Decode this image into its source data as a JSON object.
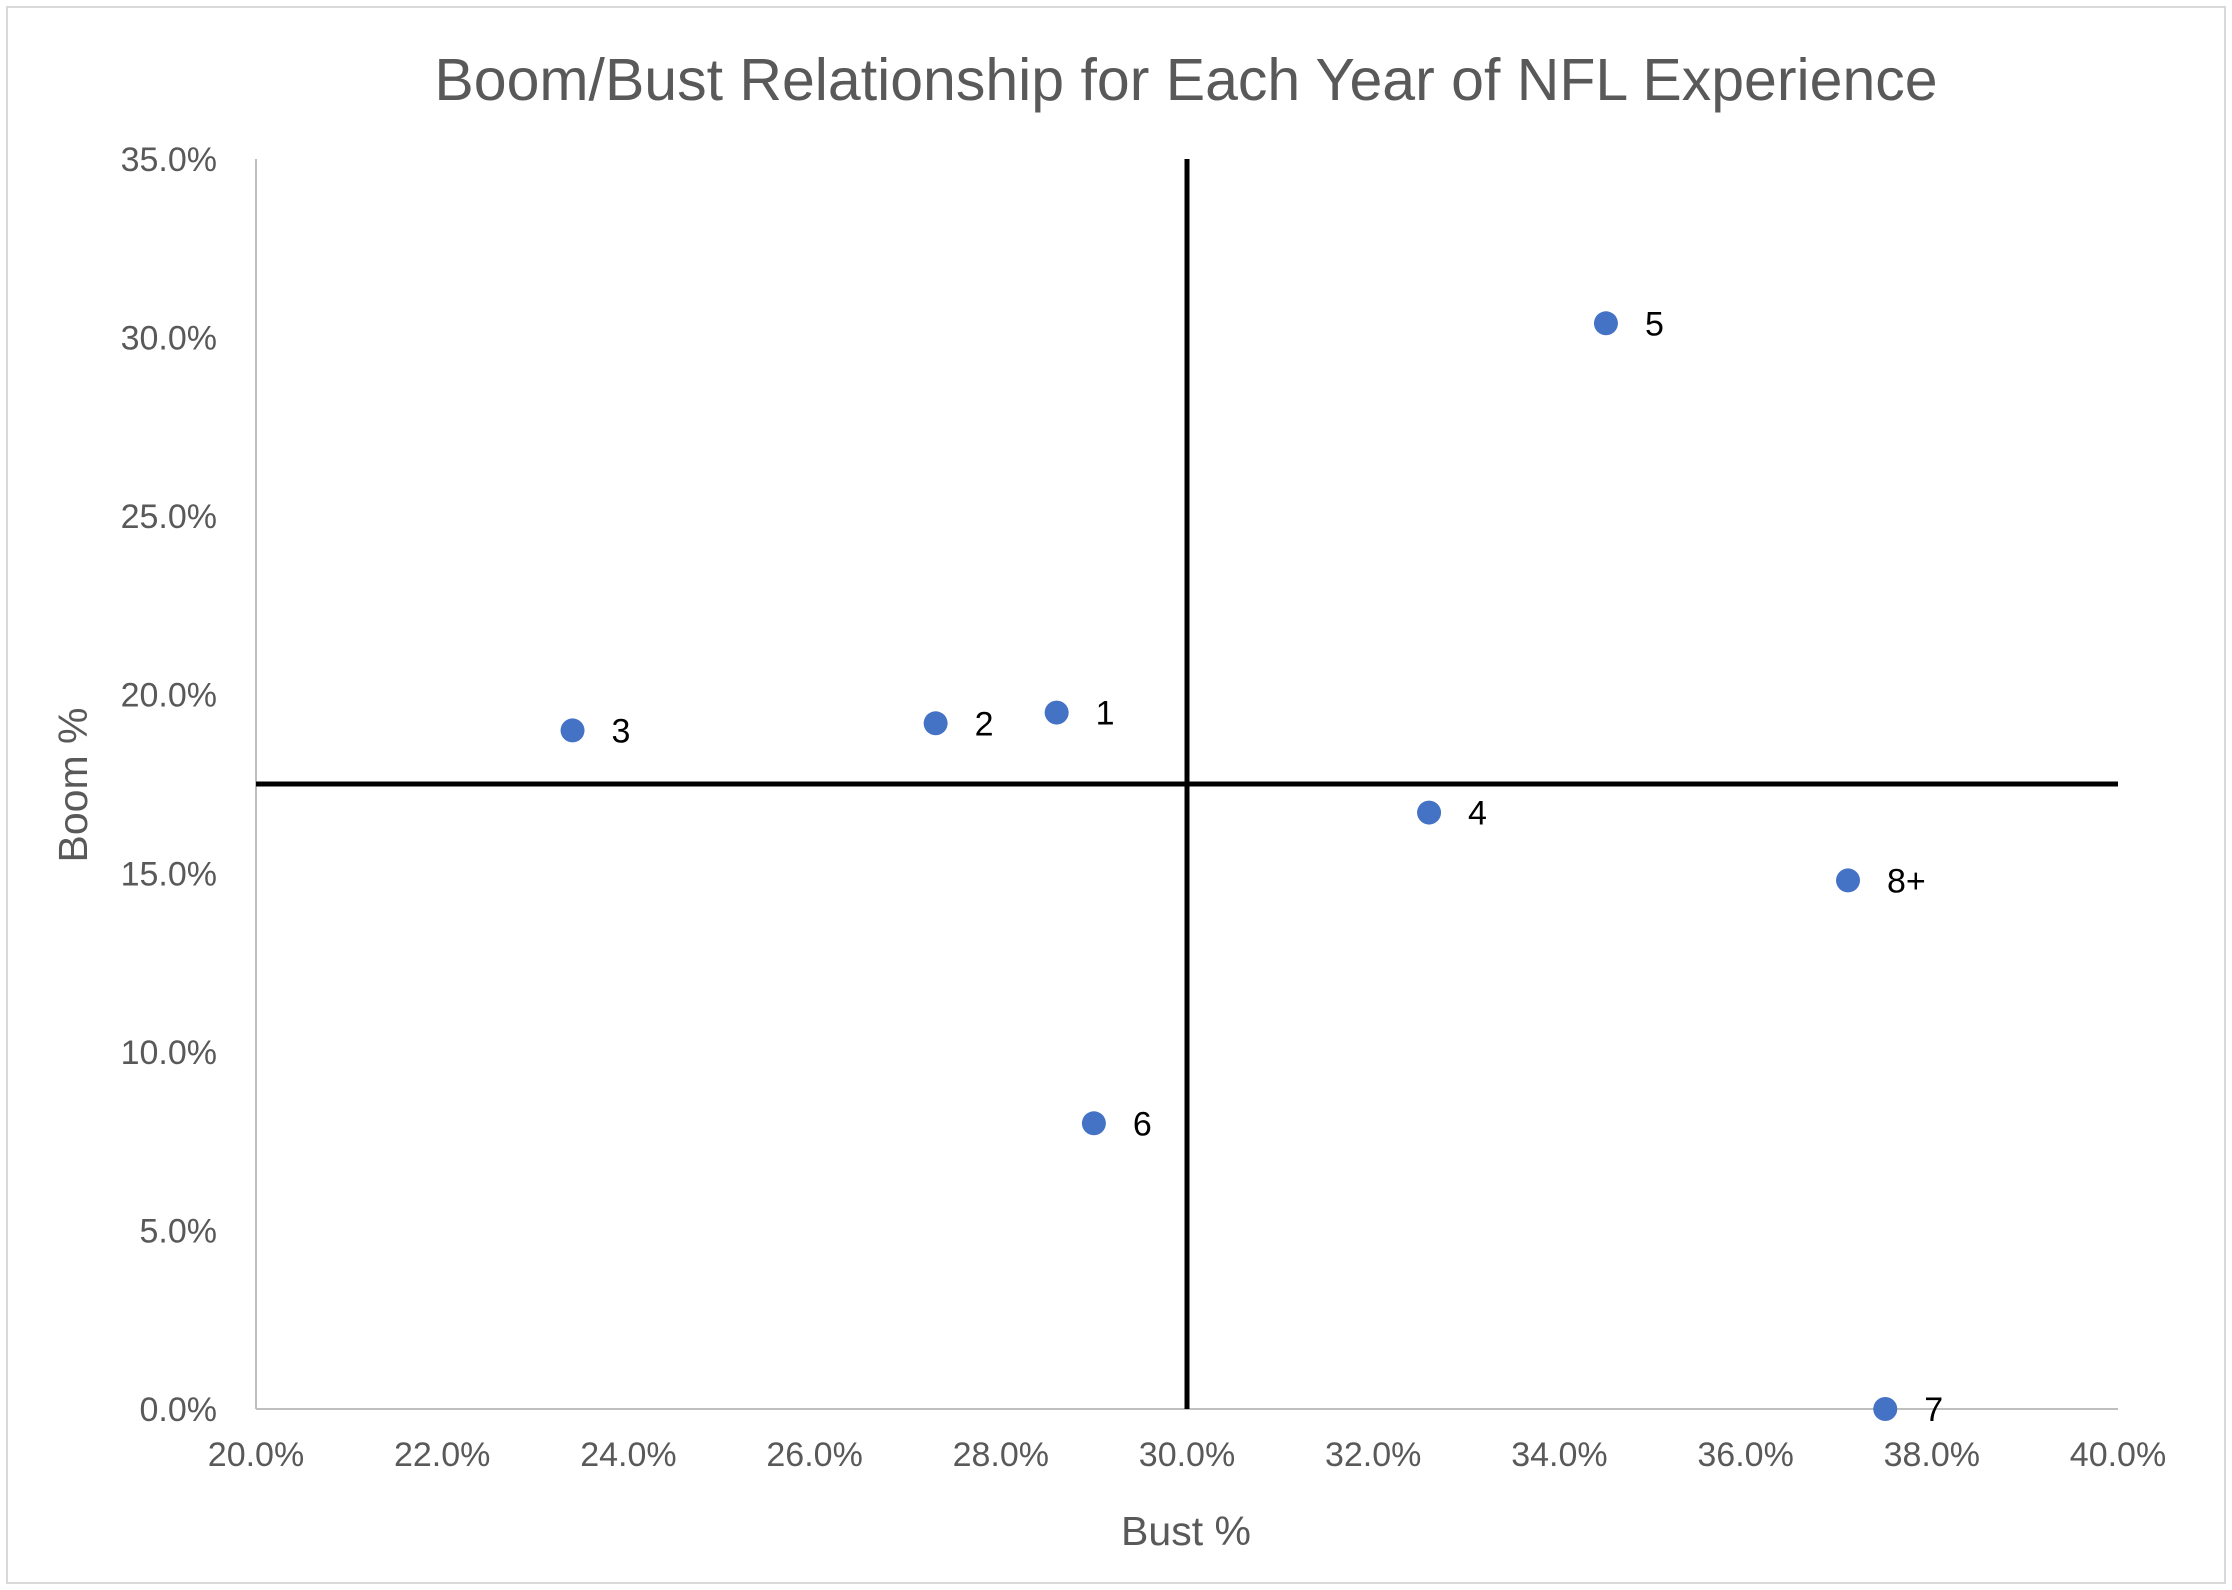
{
  "chart_data": {
    "type": "scatter",
    "title": "Boom/Bust Relationship for Each Year of NFL Experience",
    "xlabel": "Bust %",
    "ylabel": "Boom %",
    "xlim": [
      20.0,
      40.0
    ],
    "ylim": [
      0.0,
      35.0
    ],
    "x_ticks": [
      "20.0%",
      "22.0%",
      "24.0%",
      "26.0%",
      "28.0%",
      "30.0%",
      "32.0%",
      "34.0%",
      "36.0%",
      "38.0%",
      "40.0%"
    ],
    "y_ticks": [
      "0.0%",
      "5.0%",
      "10.0%",
      "15.0%",
      "20.0%",
      "25.0%",
      "30.0%",
      "35.0%"
    ],
    "grid": false,
    "legend": "none",
    "reference_lines": {
      "vertical_x": 30.0,
      "horizontal_y": 17.5
    },
    "points": [
      {
        "label": "1",
        "x": 28.6,
        "y": 19.5
      },
      {
        "label": "2",
        "x": 27.3,
        "y": 19.2
      },
      {
        "label": "3",
        "x": 23.4,
        "y": 19.0
      },
      {
        "label": "4",
        "x": 32.6,
        "y": 16.7
      },
      {
        "label": "5",
        "x": 34.5,
        "y": 30.4
      },
      {
        "label": "6",
        "x": 29.0,
        "y": 8.0
      },
      {
        "label": "7",
        "x": 37.5,
        "y": 0.0
      },
      {
        "label": "8+",
        "x": 37.1,
        "y": 14.8
      }
    ],
    "colors": {
      "marker": "#4472c4",
      "axis": "#bfbfbf",
      "reference_line": "#000000",
      "text": "#595959"
    }
  }
}
